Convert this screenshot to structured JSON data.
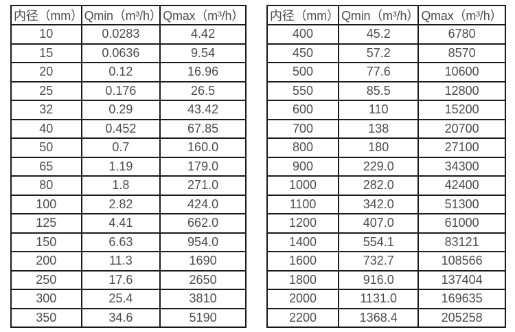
{
  "colors": {
    "text": "#4d4d4d",
    "border": "#1a1a1a",
    "background": "#ffffff"
  },
  "tables": [
    {
      "name": "flow-spec-table-small-diameters",
      "headers": [
        "内径（mm）",
        "Qmin（m³/h）",
        "Qmax（m³/h）"
      ],
      "rows": [
        [
          "10",
          "0.0283",
          "4.42"
        ],
        [
          "15",
          "0.0636",
          "9.54"
        ],
        [
          "20",
          "0.12",
          "16.96"
        ],
        [
          "25",
          "0.176",
          "26.5"
        ],
        [
          "32",
          "0.29",
          "43.42"
        ],
        [
          "40",
          "0.452",
          "67.85"
        ],
        [
          "50",
          "0.7",
          "160.0"
        ],
        [
          "65",
          "1.19",
          "179.0"
        ],
        [
          "80",
          "1.8",
          "271.0"
        ],
        [
          "100",
          "2.82",
          "424.0"
        ],
        [
          "125",
          "4.41",
          "662.0"
        ],
        [
          "150",
          "6.63",
          "954.0"
        ],
        [
          "200",
          "11.3",
          "1690"
        ],
        [
          "250",
          "17.6",
          "2650"
        ],
        [
          "300",
          "25.4",
          "3810"
        ],
        [
          "350",
          "34.6",
          "5190"
        ]
      ]
    },
    {
      "name": "flow-spec-table-large-diameters",
      "headers": [
        "内径（mm）",
        "Qmin（m³/h）",
        "Qmax（m³/h）"
      ],
      "rows": [
        [
          "400",
          "45.2",
          "6780"
        ],
        [
          "450",
          "57.2",
          "8570"
        ],
        [
          "500",
          "77.6",
          "10600"
        ],
        [
          "550",
          "85.5",
          "12800"
        ],
        [
          "600",
          "110",
          "15200"
        ],
        [
          "700",
          "138",
          "20700"
        ],
        [
          "800",
          "180",
          "27100"
        ],
        [
          "900",
          "229.0",
          "34300"
        ],
        [
          "1000",
          "282.0",
          "42400"
        ],
        [
          "1100",
          "342.0",
          "51300"
        ],
        [
          "1200",
          "407.0",
          "61000"
        ],
        [
          "1400",
          "554.1",
          "83121"
        ],
        [
          "1600",
          "732.7",
          "108566"
        ],
        [
          "1800",
          "916.0",
          "137404"
        ],
        [
          "2000",
          "1131.0",
          "169635"
        ],
        [
          "2200",
          "1368.4",
          "205258"
        ]
      ]
    }
  ]
}
